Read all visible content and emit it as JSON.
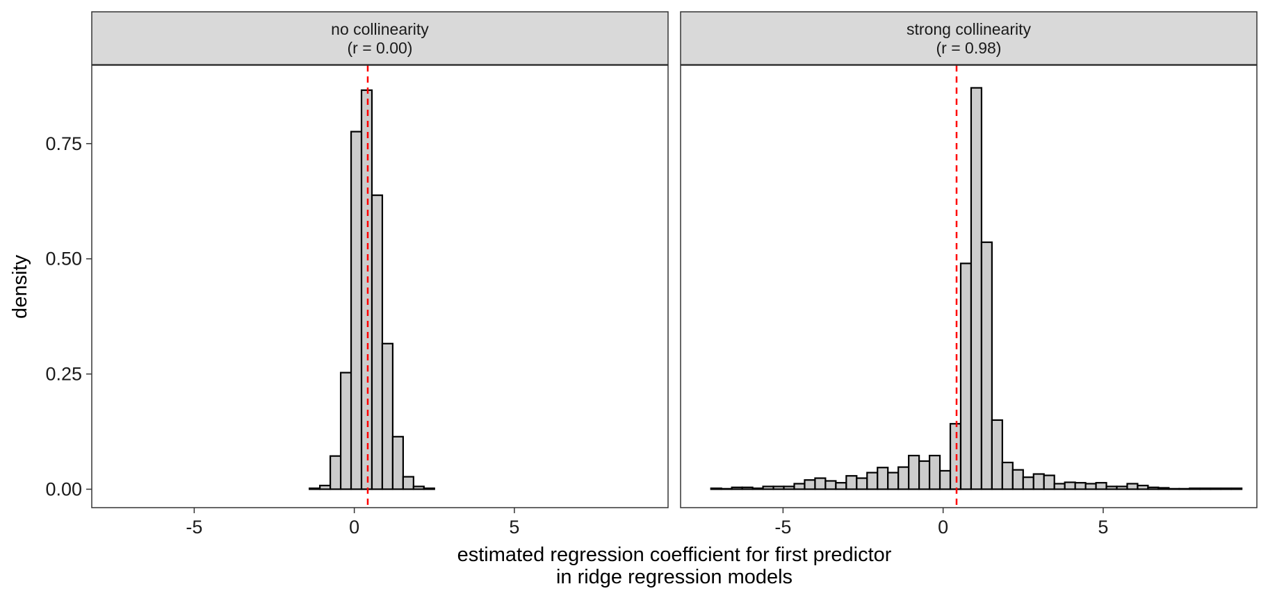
{
  "chart_data": {
    "type": "bar",
    "subtype": "faceted-histogram",
    "xlabel_line1": "estimated regression coefficient for first predictor",
    "xlabel_line2": "in ridge regression models",
    "ylabel": "density",
    "xlim": [
      -8.2,
      9.8
    ],
    "ylim": [
      -0.04,
      0.92
    ],
    "x_ticks": [
      -5,
      0,
      5
    ],
    "x_tick_labels": [
      "-5",
      "0",
      "5"
    ],
    "y_ticks": [
      0,
      0.25,
      0.5,
      0.75
    ],
    "y_tick_labels": [
      "0.00",
      "0.25",
      "0.50",
      "0.75"
    ],
    "reference_line": {
      "x": 0.42,
      "color": "#ff0000",
      "style": "dashed"
    },
    "bar_fill": "#cccccc",
    "bar_outline": "#000000",
    "strip_fill": "#d9d9d9",
    "bin_start": -7.25,
    "bin_width": 0.325,
    "grid": false,
    "legend": "none",
    "panels": [
      {
        "strip_line1": "no collinearity",
        "strip_line2": "(r = 0.00)",
        "densities": [
          0,
          0,
          0,
          0,
          0,
          0,
          0,
          0,
          0,
          0,
          0,
          0,
          0,
          0,
          0,
          0,
          0,
          0,
          0.002,
          0.008,
          0.072,
          0.253,
          0.776,
          0.866,
          0.638,
          0.316,
          0.114,
          0.027,
          0.006,
          0.002,
          0,
          0,
          0,
          0,
          0,
          0,
          0,
          0,
          0,
          0,
          0,
          0,
          0,
          0,
          0,
          0,
          0,
          0,
          0,
          0,
          0
        ]
      },
      {
        "strip_line1": "strong collinearity",
        "strip_line2": "(r = 0.98)",
        "densities": [
          0.002,
          0.001,
          0.004,
          0.004,
          0.002,
          0.006,
          0.006,
          0.006,
          0.012,
          0.02,
          0.024,
          0.018,
          0.014,
          0.029,
          0.024,
          0.036,
          0.047,
          0.036,
          0.048,
          0.073,
          0.061,
          0.073,
          0.04,
          0.142,
          0.49,
          0.871,
          0.536,
          0.15,
          0.058,
          0.042,
          0.026,
          0.033,
          0.03,
          0.012,
          0.015,
          0.014,
          0.012,
          0.014,
          0.006,
          0.006,
          0.012,
          0.008,
          0.004,
          0.003,
          0.001,
          0.001,
          0.002,
          0.002,
          0.002,
          0.002,
          0.002
        ]
      }
    ]
  }
}
